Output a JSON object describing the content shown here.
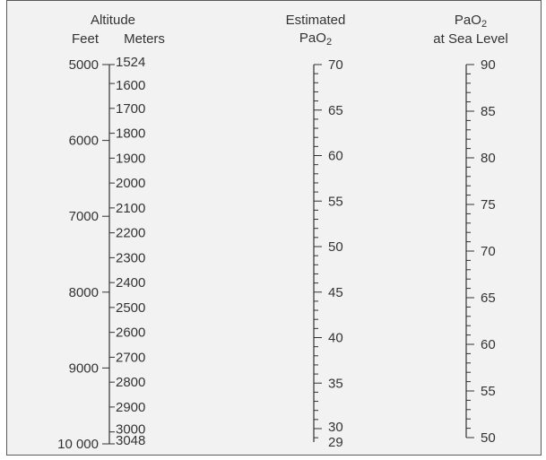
{
  "headers": {
    "altitude": "Altitude",
    "feet": "Feet",
    "meters": "Meters",
    "estimated_line1": "Estimated",
    "estimated_line2_prefix": "PaO",
    "estimated_line2_sub": "2",
    "sealevel_line1_prefix": "PaO",
    "sealevel_line1_sub": "2",
    "sealevel_line2": "at Sea Level"
  },
  "feet_labels": [
    "5000",
    "6000",
    "7000",
    "8000",
    "9000",
    "10 000"
  ],
  "meter_labels": [
    "1524",
    "1600",
    "1700",
    "1800",
    "1900",
    "2000",
    "2100",
    "2200",
    "2300",
    "2400",
    "2500",
    "2600",
    "2700",
    "2800",
    "2900",
    "3000",
    "3048"
  ],
  "estimated_labels": [
    "70",
    "65",
    "60",
    "55",
    "50",
    "45",
    "40",
    "35",
    "30",
    "29"
  ],
  "sealevel_labels": [
    "90",
    "85",
    "80",
    "75",
    "70",
    "65",
    "60",
    "55",
    "50"
  ],
  "colors": {
    "background": "#f2f2f2",
    "ink": "#333333",
    "border": "#5a5a5a"
  }
}
